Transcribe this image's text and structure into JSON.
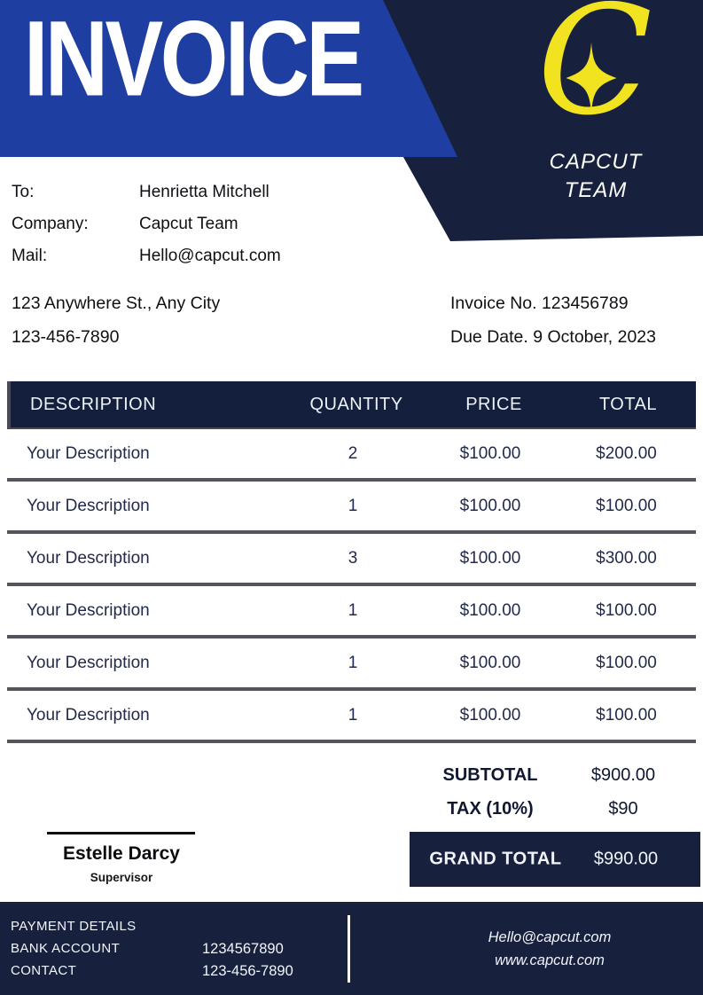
{
  "title": "INVOICE",
  "brand": {
    "logo_letter": "C",
    "name_line1": "CAPCUT",
    "name_line2": "TEAM"
  },
  "bill_to": {
    "rows": [
      {
        "label": "To:",
        "value": "Henrietta Mitchell"
      },
      {
        "label": "Company:",
        "value": "Capcut Team"
      },
      {
        "label": "Mail:",
        "value": "Hello@capcut.com"
      }
    ],
    "address": "123 Anywhere St., Any City",
    "phone": "123-456-7890"
  },
  "meta": {
    "invoice_no": "Invoice No. 123456789",
    "due_date": "Due Date. 9 October, 2023"
  },
  "table": {
    "headers": [
      "DESCRIPTION",
      "QUANTITY",
      "PRICE",
      "TOTAL"
    ],
    "rows": [
      {
        "description": "Your Description",
        "quantity": "2",
        "price": "$100.00",
        "total": "$200.00"
      },
      {
        "description": "Your Description",
        "quantity": "1",
        "price": "$100.00",
        "total": "$100.00"
      },
      {
        "description": "Your Description",
        "quantity": "3",
        "price": "$100.00",
        "total": "$300.00"
      },
      {
        "description": "Your Description",
        "quantity": "1",
        "price": "$100.00",
        "total": "$100.00"
      },
      {
        "description": "Your Description",
        "quantity": "1",
        "price": "$100.00",
        "total": "$100.00"
      },
      {
        "description": "Your Description",
        "quantity": "1",
        "price": "$100.00",
        "total": "$100.00"
      }
    ]
  },
  "summary": {
    "subtotal_label": "SUBTOTAL",
    "subtotal_value": "$900.00",
    "tax_label": "TAX (10%)",
    "tax_value": "$90",
    "grand_total_label": "GRAND TOTAL",
    "grand_total_value": "$990.00"
  },
  "signature": {
    "name": "Estelle Darcy",
    "role": "Supervisor"
  },
  "footer": {
    "payment_details_label": "PAYMENT DETAILS",
    "bank_account_label": "BANK ACCOUNT",
    "bank_account_value": "1234567890",
    "contact_label": "CONTACT",
    "contact_value": "123-456-7890",
    "email": "Hello@capcut.com",
    "website": "www.capcut.com"
  },
  "colors": {
    "blue": "#1E3FA1",
    "navy": "#17213D",
    "yellow": "#F2E320"
  }
}
